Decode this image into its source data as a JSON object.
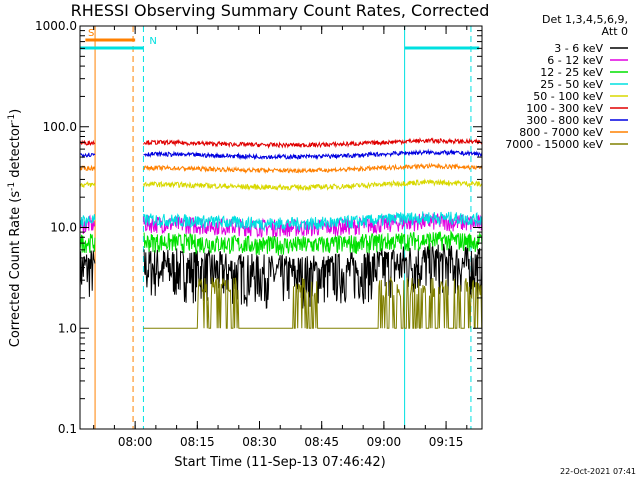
{
  "chart_data": {
    "type": "line",
    "title": "RHESSI Observing Summary Count Rates, Corrected",
    "xlabel": "Start Time (11-Sep-13 07:46:42)",
    "ylabel": "Corrected Count Rate (s",
    "ylabel_sup1": "-1",
    "ylabel_mid": " detector",
    "ylabel_sup2": "-1",
    "ylabel_end": ")",
    "yscale": "log",
    "xlim": [
      "07:46:42",
      "09:23:40"
    ],
    "ylim": [
      0.1,
      1000
    ],
    "y_ticks": [
      "1000.0",
      "100.0",
      "10.0",
      "1.0",
      "0.1"
    ],
    "x_ticks": [
      "08:00",
      "08:15",
      "08:30",
      "08:45",
      "09:00",
      "09:15"
    ],
    "legend_header": [
      "Det 1,3,4,5,6,9,",
      "Att 0"
    ],
    "legend_position": "right",
    "series": [
      {
        "name": "3 - 6 keV",
        "color": "#000000",
        "base": 3.8,
        "amp": 0.2,
        "noise": 0.55,
        "sparse": false,
        "extra": false
      },
      {
        "name": "6 - 12 keV",
        "color": "#e000e0",
        "base": 10.5,
        "amp": 0.1,
        "noise": 0.2,
        "sparse": false,
        "extra": false
      },
      {
        "name": "12 - 25 keV",
        "color": "#00e000",
        "base": 7.0,
        "amp": 0.08,
        "noise": 0.22,
        "sparse": false,
        "extra": false
      },
      {
        "name": "25 - 50 keV",
        "color": "#00e0e0",
        "base": 11.5,
        "amp": 0.1,
        "noise": 0.15,
        "sparse": false,
        "extra": false
      },
      {
        "name": "50 - 100 keV",
        "color": "#d8d800",
        "base": 26.0,
        "amp": 0.08,
        "noise": 0.06,
        "sparse": false,
        "extra": false
      },
      {
        "name": "100 - 300 keV",
        "color": "#e00000",
        "base": 68.0,
        "amp": 0.07,
        "noise": 0.05,
        "sparse": false,
        "extra": false
      },
      {
        "name": "300 - 800 keV",
        "color": "#0000e0",
        "base": 52.0,
        "amp": 0.07,
        "noise": 0.05,
        "sparse": false,
        "extra": false
      },
      {
        "name": "800 - 7000 keV",
        "color": "#ff8000",
        "base": 38.0,
        "amp": 0.07,
        "noise": 0.05,
        "sparse": false,
        "extra": false
      },
      {
        "name": "7000 - 15000 keV",
        "color": "#808000",
        "base": 1.0,
        "amp": 0.0,
        "noise": 0.0,
        "sparse": true,
        "extra": false
      }
    ],
    "intervals": [
      {
        "label": "S",
        "start": "07:48:00",
        "end": "08:00:00",
        "color": "#ff8000"
      },
      {
        "label": "N",
        "start": "07:46:42",
        "end": "08:02:00",
        "color": "#00e0e0"
      },
      {
        "label": "",
        "start": "09:05:00",
        "end": "09:23:00",
        "color": "#00e0e0"
      }
    ],
    "markers": {
      "orange_solid": "07:50:20",
      "orange_dashed": "07:59:30",
      "cyan_dashed": [
        "08:02:00",
        "09:21:00"
      ],
      "cyan_solid": [
        "07:46:42",
        "09:05:00"
      ]
    },
    "data_gap": [
      "07:50:20",
      "08:02:00"
    ]
  },
  "stamp": "22-Oct-2021 07:41"
}
